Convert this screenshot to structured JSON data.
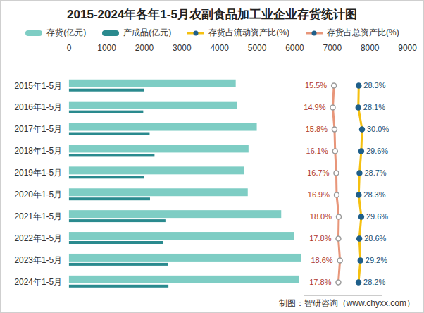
{
  "chart_data": {
    "type": "bar",
    "title": "2015-2024年各年1-5月农副食品加工业企业存货统计图",
    "caption": "制图：智研咨询（www.chyxx.com）",
    "orientation": "horizontal",
    "legend": "top",
    "grid": false,
    "categories": [
      "2015年1-5月",
      "2016年1-5月",
      "2017年1-5月",
      "2018年1-5月",
      "2019年1-5月",
      "2020年1-5月",
      "2021年1-5月",
      "2022年1-5月",
      "2023年1-5月",
      "2024年1-5月"
    ],
    "xlim": [
      0,
      9000
    ],
    "xticks": [
      0,
      1000,
      2000,
      3000,
      4000,
      5000,
      6000,
      7000,
      8000,
      9000
    ],
    "x2lim": [
      0,
      40
    ],
    "x2ticks": [],
    "series": [
      {
        "name": "存货(亿元)",
        "type": "bar",
        "color": "#7ecdc4",
        "values": [
          4440,
          4480,
          5000,
          4780,
          4660,
          4760,
          5650,
          5990,
          6180,
          6120
        ]
      },
      {
        "name": "产成品(亿元)",
        "type": "bar",
        "color": "#2a8a8e",
        "values": [
          2000,
          1980,
          2150,
          2280,
          2010,
          2160,
          2570,
          2500,
          2630,
          2650
        ]
      },
      {
        "name": "存货占流动资产比(%)",
        "type": "line",
        "axis": "x2",
        "color": "#f5c010",
        "marker": "circle",
        "data_labels": true,
        "values": [
          28.3,
          28.1,
          30.0,
          29.6,
          28.7,
          28.3,
          29.6,
          28.6,
          29.2,
          28.2
        ],
        "value_labels": [
          "28.3%",
          "28.1%",
          "30.0%",
          "29.6%",
          "28.7%",
          "28.3%",
          "29.6%",
          "28.6%",
          "29.2%",
          "28.2%"
        ]
      },
      {
        "name": "存货占总资产比(%)",
        "type": "line",
        "axis": "x2",
        "color": "#e8967a",
        "marker": "circle",
        "data_labels": true,
        "values": [
          15.5,
          14.9,
          15.8,
          16.1,
          16.7,
          16.9,
          18.0,
          17.8,
          18.6,
          17.8
        ],
        "value_labels": [
          "15.5%",
          "14.9%",
          "15.8%",
          "16.1%",
          "16.7%",
          "16.9%",
          "18.0%",
          "17.8%",
          "18.6%",
          "17.8%"
        ]
      }
    ]
  }
}
